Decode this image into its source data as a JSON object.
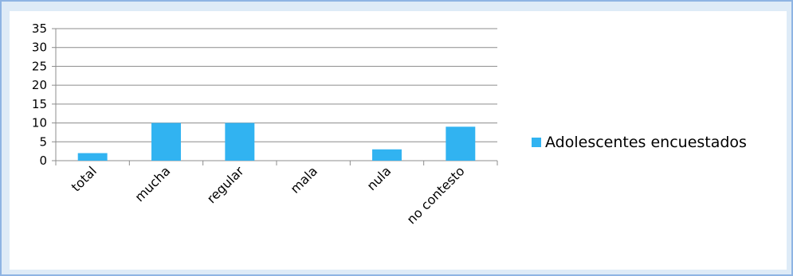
{
  "chart_data": {
    "type": "bar",
    "categories": [
      "total",
      "mucha",
      "regular",
      "mala",
      "nula",
      "no contesto"
    ],
    "series": [
      {
        "name": "Adolescentes encuestados",
        "values": [
          2,
          10,
          10,
          0,
          3,
          9
        ]
      }
    ],
    "y_ticks": [
      "0",
      "5",
      "10",
      "15",
      "20",
      "25",
      "30",
      "35"
    ],
    "ylim": [
      0,
      35
    ],
    "grid": true,
    "legend_position": "right",
    "title": "",
    "xlabel": "",
    "ylabel": "",
    "colors": {
      "bar": "#31b3f1",
      "grid": "#8c8c8c",
      "frame_border": "#8eb4e3",
      "frame_bg": "#deebf7"
    }
  }
}
